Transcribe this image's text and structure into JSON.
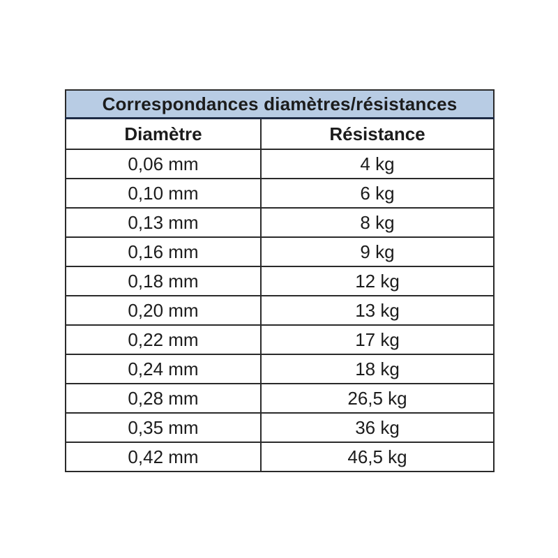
{
  "page": {
    "background": "#ffffff"
  },
  "table": {
    "title": "Correspondances diamètres/résistances",
    "columns": [
      "Diamètre",
      "Résistance"
    ],
    "rows": [
      {
        "diametre": "0,06 mm",
        "resistance": "4 kg"
      },
      {
        "diametre": "0,10 mm",
        "resistance": "6 kg"
      },
      {
        "diametre": "0,13 mm",
        "resistance": "8 kg"
      },
      {
        "diametre": "0,16 mm",
        "resistance": "9 kg"
      },
      {
        "diametre": "0,18 mm",
        "resistance": "12 kg"
      },
      {
        "diametre": "0,20 mm",
        "resistance": "13 kg"
      },
      {
        "diametre": "0,22 mm",
        "resistance": "17 kg"
      },
      {
        "diametre": "0,24 mm",
        "resistance": "18 kg"
      },
      {
        "diametre": "0,28 mm",
        "resistance": "26,5 kg"
      },
      {
        "diametre": "0,35 mm",
        "resistance": "36 kg"
      },
      {
        "diametre": "0,42 mm",
        "resistance": "46,5 kg"
      }
    ],
    "colors": {
      "title_background": "#b8cce4",
      "border": "#2a2a2a",
      "title_bottom_border": "#1e2b45",
      "text": "#1c1c1c",
      "page_background": "#ffffff"
    }
  },
  "chart_data": {
    "type": "table",
    "title": "Correspondances diamètres/résistances",
    "columns": [
      "Diamètre",
      "Résistance"
    ],
    "rows": [
      [
        "0,06 mm",
        "4 kg"
      ],
      [
        "0,10 mm",
        "6 kg"
      ],
      [
        "0,13 mm",
        "8 kg"
      ],
      [
        "0,16 mm",
        "9 kg"
      ],
      [
        "0,18 mm",
        "12 kg"
      ],
      [
        "0,20 mm",
        "13 kg"
      ],
      [
        "0,22 mm",
        "17 kg"
      ],
      [
        "0,24 mm",
        "18 kg"
      ],
      [
        "0,28 mm",
        "26,5 kg"
      ],
      [
        "0,35 mm",
        "36 kg"
      ],
      [
        "0,42 mm",
        "46,5 kg"
      ]
    ],
    "diameters_mm": [
      0.06,
      0.1,
      0.13,
      0.16,
      0.18,
      0.2,
      0.22,
      0.24,
      0.28,
      0.35,
      0.42
    ],
    "resistances_kg": [
      4,
      6,
      8,
      9,
      12,
      13,
      17,
      18,
      26.5,
      36,
      46.5
    ]
  }
}
